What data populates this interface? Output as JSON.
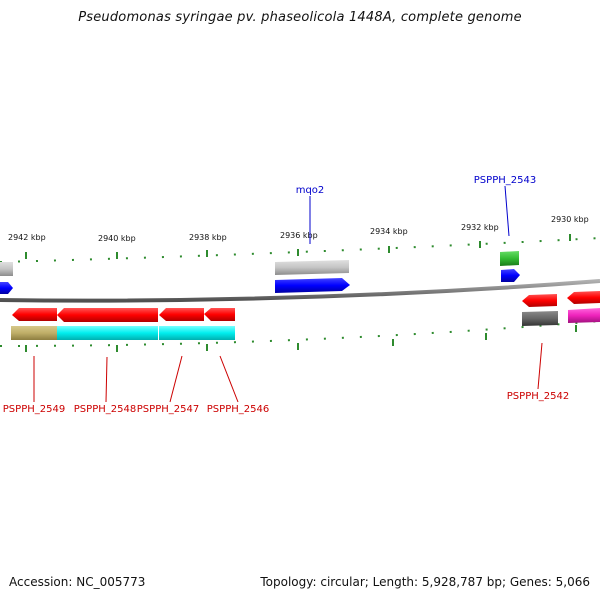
{
  "title": "Pseudomonas syringae pv. phaseolicola 1448A, complete genome",
  "footer": {
    "accession": "Accession: NC_005773",
    "summary": "Topology: circular; Length: 5,928,787 bp; Genes: 5,066"
  },
  "scale_labels": [
    "2942 kbp",
    "2940 kbp",
    "2938 kbp",
    "2936 kbp",
    "2934 kbp",
    "2932 kbp",
    "2930 kbp"
  ],
  "gene_labels": {
    "mqo2": "mqo2",
    "PSPPH_2543": "PSPPH_2543",
    "PSPPH_2549": "PSPPH_2549",
    "PSPPH_2548": "PSPPH_2548",
    "PSPPH_2547": "PSPPH_2547",
    "PSPPH_2546": "PSPPH_2546",
    "PSPPH_2542": "PSPPH_2542"
  },
  "colors": {
    "forward_label": "#0000cc",
    "reverse_label": "#cc0000",
    "tick": "#2e8b2e",
    "backbone": "#808080"
  }
}
